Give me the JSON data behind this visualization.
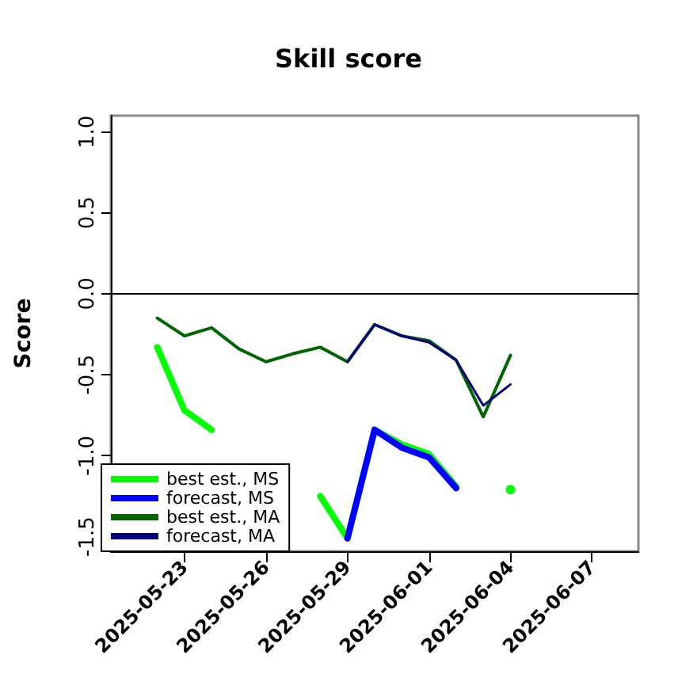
{
  "chart_data": {
    "type": "line",
    "title": "Skill score",
    "ylabel": "Score",
    "x": [
      "2025-05-22",
      "2025-05-23",
      "2025-05-24",
      "2025-05-25",
      "2025-05-26",
      "2025-05-27",
      "2025-05-28",
      "2025-05-29",
      "2025-05-30",
      "2025-05-31",
      "2025-06-01",
      "2025-06-02",
      "2025-06-03",
      "2025-06-04"
    ],
    "series": [
      {
        "name": "best est., MS",
        "color": "#00ff00",
        "values": [
          -0.33,
          -0.72,
          -0.84,
          null,
          null,
          null,
          -1.25,
          -1.51,
          -0.84,
          -0.93,
          -0.99,
          -1.19,
          null,
          -1.21
        ]
      },
      {
        "name": "forecast, MS",
        "color": "#0000ff",
        "values": [
          null,
          null,
          null,
          null,
          null,
          null,
          null,
          -1.51,
          -0.84,
          -0.95,
          -1.01,
          -1.2,
          null,
          null
        ]
      },
      {
        "name": "best est., MA",
        "color": "#006400",
        "values": [
          -0.15,
          -0.26,
          -0.21,
          -0.34,
          -0.42,
          -0.37,
          -0.33,
          -0.42,
          -0.19,
          -0.26,
          -0.29,
          -0.41,
          -0.76,
          -0.38
        ]
      },
      {
        "name": "forecast, MA",
        "color": "#000080",
        "values": [
          null,
          null,
          null,
          null,
          null,
          null,
          null,
          -0.42,
          -0.19,
          -0.26,
          -0.3,
          -0.41,
          -0.69,
          -0.56
        ]
      }
    ],
    "xlim": [
      "2025-05-20T07:00",
      "2025-06-08T17:00"
    ],
    "xticks": [
      "2025-05-23",
      "2025-05-26",
      "2025-05-29",
      "2025-06-01",
      "2025-06-04",
      "2025-06-07"
    ],
    "ylim": [
      -1.59,
      1.1
    ],
    "yticks": [
      {
        "value": -1.5,
        "label": "-1.5"
      },
      {
        "value": -1,
        "label": "-1.0"
      },
      {
        "value": -0.5,
        "label": "-0.5"
      },
      {
        "value": 0,
        "label": "0.0"
      },
      {
        "value": 0.5,
        "label": "0.5"
      },
      {
        "value": 1,
        "label": "1.0"
      }
    ],
    "ref_lines": [
      {
        "axis": "y",
        "value": 0,
        "color": "#000000"
      }
    ],
    "legend": "bottom left",
    "grid": false,
    "marker": "none",
    "line_style": "solid"
  }
}
